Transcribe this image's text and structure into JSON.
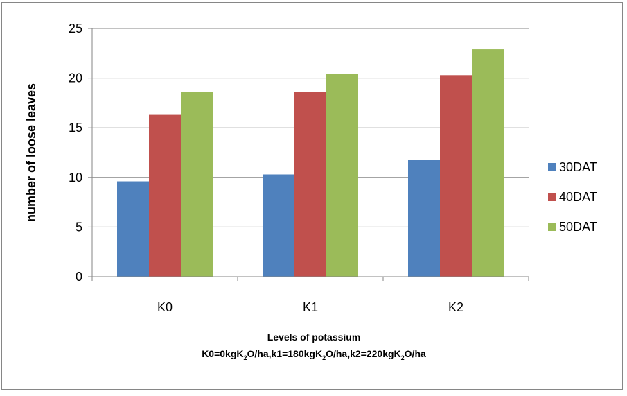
{
  "chart_data": {
    "type": "bar",
    "categories": [
      "K0",
      "K1",
      "K2"
    ],
    "series": [
      {
        "name": "30DAT",
        "color": "#4f81bd",
        "values": [
          9.6,
          10.3,
          11.8
        ]
      },
      {
        "name": "40DAT",
        "color": "#c0504d",
        "values": [
          16.3,
          18.6,
          20.3
        ]
      },
      {
        "name": "50DAT",
        "color": "#9bbb59",
        "values": [
          18.6,
          20.4,
          22.9
        ]
      }
    ],
    "ylabel": "number of loose leaves",
    "xlabel": {
      "line1": "Levels of potassium",
      "line2_parts": [
        {
          "text": "K0=0kgK",
          "sub": false
        },
        {
          "text": "2",
          "sub": true
        },
        {
          "text": "O/ha,k1=180kgK",
          "sub": false
        },
        {
          "text": "2",
          "sub": true
        },
        {
          "text": "O/ha,k2=220kgK",
          "sub": false
        },
        {
          "text": "2",
          "sub": true
        },
        {
          "text": "O/ha",
          "sub": false
        }
      ]
    },
    "ylim": [
      0,
      25
    ],
    "yticks": [
      0,
      5,
      10,
      15,
      20,
      25
    ],
    "grid": true,
    "legend_position": "right"
  }
}
